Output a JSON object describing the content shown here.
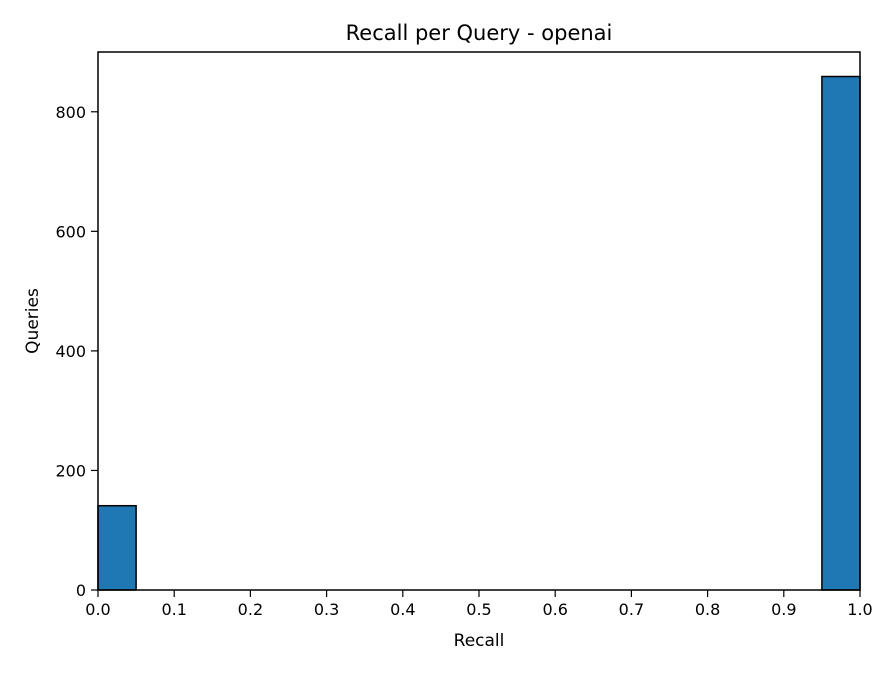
{
  "chart_data": {
    "type": "bar",
    "title": "Recall per Query - openai",
    "xlabel": "Recall",
    "ylabel": "Queries",
    "xlim": [
      0.0,
      1.0
    ],
    "ylim": [
      0,
      900
    ],
    "x_ticks": [
      "0.0",
      "0.1",
      "0.2",
      "0.3",
      "0.4",
      "0.5",
      "0.6",
      "0.7",
      "0.8",
      "0.9",
      "1.0"
    ],
    "y_ticks": [
      "0",
      "200",
      "400",
      "600",
      "800"
    ],
    "bins": [
      {
        "x0": 0.0,
        "x1": 0.05,
        "value": 141
      },
      {
        "x0": 0.05,
        "x1": 0.1,
        "value": 0
      },
      {
        "x0": 0.1,
        "x1": 0.15,
        "value": 0
      },
      {
        "x0": 0.15,
        "x1": 0.2,
        "value": 0
      },
      {
        "x0": 0.2,
        "x1": 0.25,
        "value": 0
      },
      {
        "x0": 0.25,
        "x1": 0.3,
        "value": 0
      },
      {
        "x0": 0.3,
        "x1": 0.35,
        "value": 0
      },
      {
        "x0": 0.35,
        "x1": 0.4,
        "value": 0
      },
      {
        "x0": 0.4,
        "x1": 0.45,
        "value": 0
      },
      {
        "x0": 0.45,
        "x1": 0.5,
        "value": 0
      },
      {
        "x0": 0.5,
        "x1": 0.55,
        "value": 0
      },
      {
        "x0": 0.55,
        "x1": 0.6,
        "value": 0
      },
      {
        "x0": 0.6,
        "x1": 0.65,
        "value": 0
      },
      {
        "x0": 0.65,
        "x1": 0.7,
        "value": 0
      },
      {
        "x0": 0.7,
        "x1": 0.75,
        "value": 0
      },
      {
        "x0": 0.75,
        "x1": 0.8,
        "value": 0
      },
      {
        "x0": 0.8,
        "x1": 0.85,
        "value": 0
      },
      {
        "x0": 0.85,
        "x1": 0.9,
        "value": 0
      },
      {
        "x0": 0.9,
        "x1": 0.95,
        "value": 0
      },
      {
        "x0": 0.95,
        "x1": 1.0,
        "value": 859
      }
    ],
    "bar_color": "#1f77b4",
    "edge_color": "#000000",
    "grid": false
  }
}
